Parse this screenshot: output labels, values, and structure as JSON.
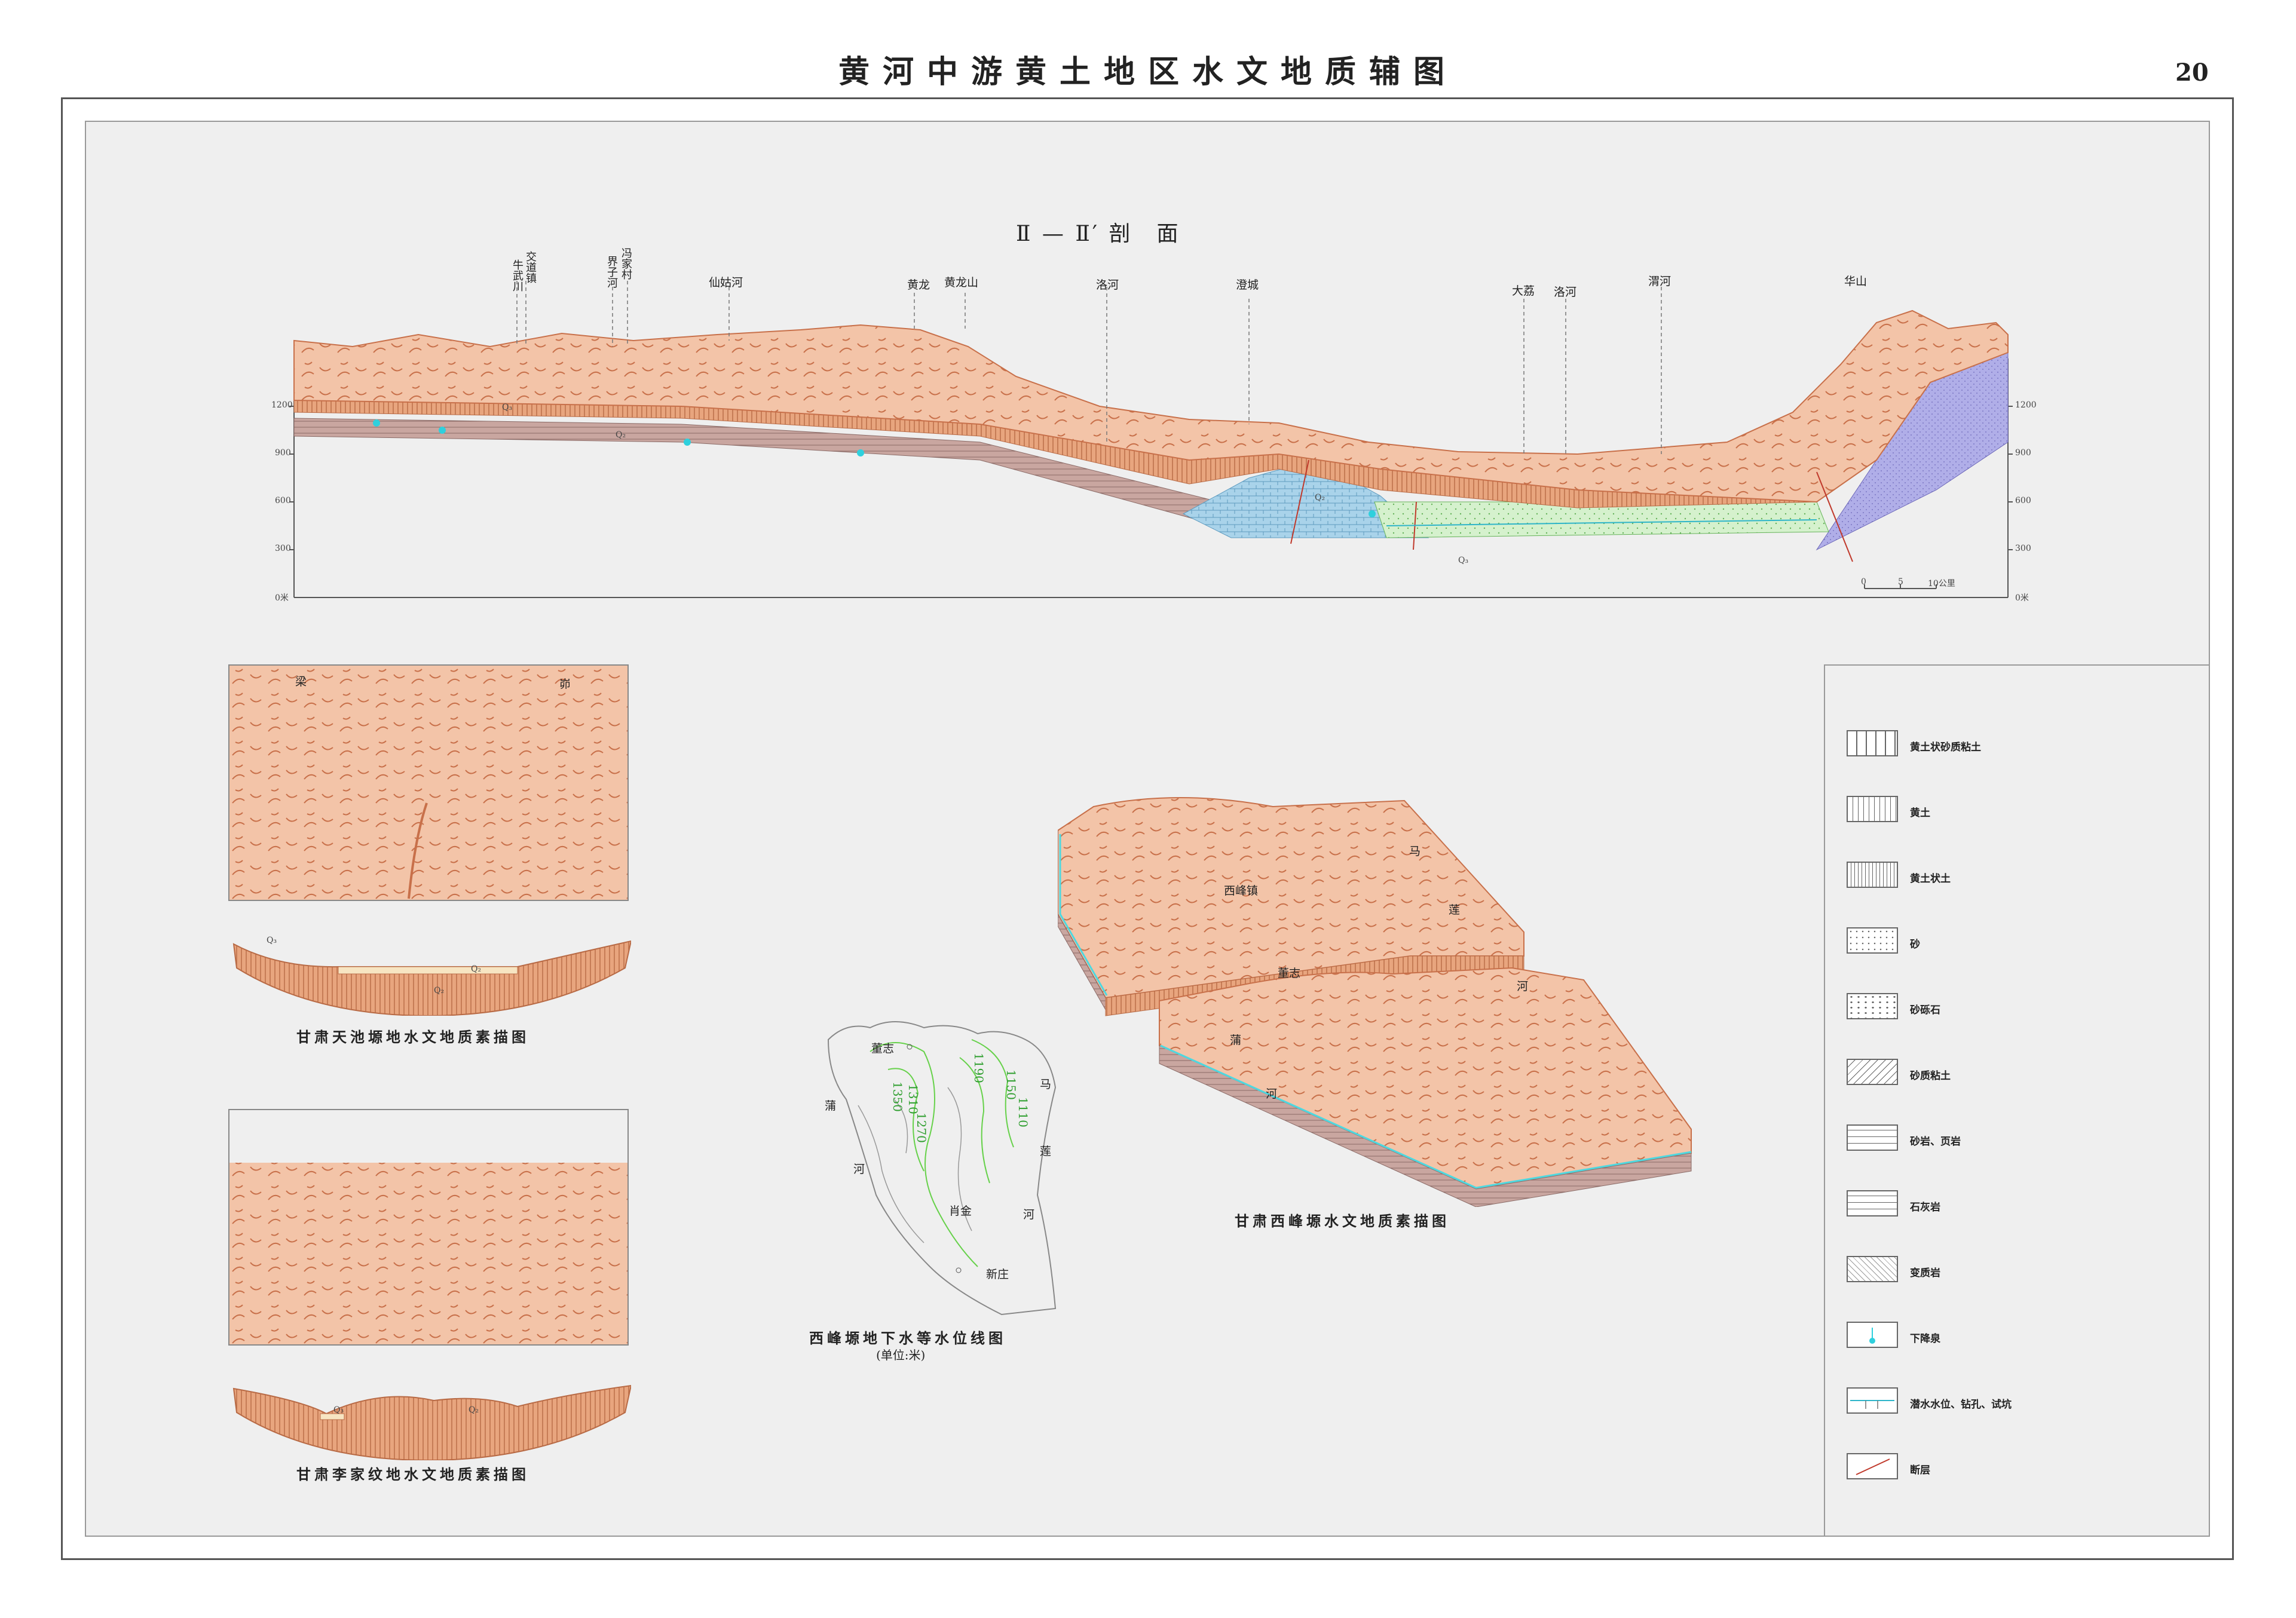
{
  "title": "黄河中游黄土地区水文地质辅图",
  "page_number": "20",
  "section": {
    "title": "Ⅱ — Ⅱ′ 剖　面",
    "axis_left": [
      "1200",
      "900",
      "600",
      "300",
      "0米"
    ],
    "axis_right": [
      "1200",
      "900",
      "600",
      "300",
      "0米"
    ],
    "scale": [
      "0",
      "5",
      "10公里"
    ],
    "places": {
      "niuwuchuan": "牛武川",
      "jiaodaozhen": "交道镇",
      "jiezihe": "界子河",
      "fengjiacun": "冯家村",
      "xianguhe": "仙姑河",
      "huanglong": "黄龙",
      "huanglongshan": "黄龙山",
      "luohe1": "洛河",
      "chengcheng": "澄城",
      "dali": "大荔",
      "luohe2": "洛河",
      "weihe": "渭河",
      "huashan": "华山"
    },
    "strata": [
      "Q₃",
      "Q₂",
      "Q₂",
      "Q₃"
    ]
  },
  "sketch1": {
    "caption": "甘肃天池塬地水文地质素描图",
    "top_labels": [
      "梁",
      "峁"
    ],
    "strata": [
      "Q₃",
      "Q₂",
      "Q₂"
    ]
  },
  "sketch2": {
    "caption": "甘肃李家纹地水文地质素描图",
    "strata": [
      "Q₃",
      "Q₂"
    ]
  },
  "contour_map": {
    "caption": "西峰塬地下水等水位线图",
    "unit": "(单位:米)",
    "places": {
      "dongzhi": "董志",
      "puhe": "蒲",
      "puhe2": "河",
      "mahe": "马",
      "mahe2": "莲",
      "mahe3": "河",
      "qingjin": "肖金",
      "xinzhuang": "新庄"
    },
    "contours": [
      "1350",
      "1310",
      "1270",
      "1190",
      "1150",
      "1110"
    ]
  },
  "block": {
    "caption": "甘肃西峰塬水文地质素描图",
    "places": {
      "xifengzhen": "西峰镇",
      "dongzhi": "董志",
      "ma": "马",
      "lian": "莲",
      "he1": "河",
      "pu": "蒲",
      "he2": "河"
    }
  },
  "legend": {
    "items": [
      {
        "label": "黄土状砂质粘土",
        "icon": "sandy-clay-loess-pattern"
      },
      {
        "label": "黄土",
        "icon": "loess-pattern"
      },
      {
        "label": "黄土状土",
        "icon": "loess-like-soil-pattern"
      },
      {
        "label": "砂",
        "icon": "sand-pattern"
      },
      {
        "label": "砂砾石",
        "icon": "gravel-pattern"
      },
      {
        "label": "砂质粘土",
        "icon": "sandy-clay-pattern"
      },
      {
        "label": "砂岩、页岩",
        "icon": "sandstone-shale-pattern"
      },
      {
        "label": "石灰岩",
        "icon": "limestone-pattern"
      },
      {
        "label": "变质岩",
        "icon": "metamorphic-pattern"
      },
      {
        "label": "下降泉",
        "icon": "spring-symbol"
      },
      {
        "label": "潜水水位、钻孔、试坑",
        "icon": "water-level-symbol"
      },
      {
        "label": "断层",
        "icon": "fault-symbol"
      }
    ]
  },
  "colors": {
    "loess": "#f3c4a8",
    "ridge": "#c8704a",
    "gravel": "#e0936a",
    "limestone": "#a9d3ea",
    "metamorphic": "#b0aee8",
    "water": "#4dd8e0",
    "green_zone": "#c9eec0"
  }
}
